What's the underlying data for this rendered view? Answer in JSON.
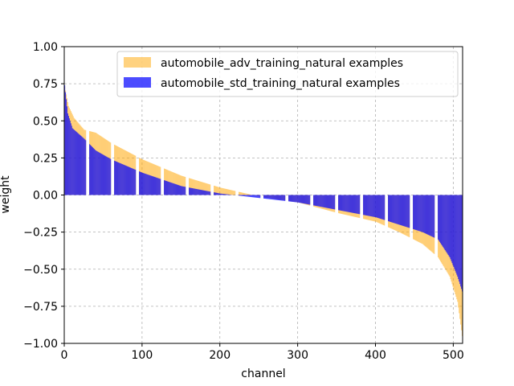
{
  "chart_data": {
    "type": "bar",
    "xlabel": "channel",
    "ylabel": "weight",
    "xlim": [
      0,
      512
    ],
    "ylim": [
      -1.0,
      1.0
    ],
    "xticks": [
      0,
      100,
      200,
      300,
      400,
      500
    ],
    "yticks": [
      -1.0,
      -0.75,
      -0.5,
      -0.25,
      0.0,
      0.25,
      0.5,
      0.75,
      1.0
    ],
    "ytick_labels": [
      "−1.00",
      "−0.75",
      "−0.50",
      "−0.25",
      "0.00",
      "0.25",
      "0.50",
      "0.75",
      "1.00"
    ],
    "grid": true,
    "legend_position": "top-right",
    "channel_count": 512,
    "gap_every": 32,
    "gap_width": 4,
    "series": [
      {
        "name": "automobile_adv_training_natural examples",
        "color": "#ffa500",
        "alpha": 0.5,
        "curve_knots": [
          [
            0,
            0.73
          ],
          [
            5,
            0.6
          ],
          [
            12,
            0.52
          ],
          [
            25,
            0.44
          ],
          [
            40,
            0.42
          ],
          [
            60,
            0.35
          ],
          [
            100,
            0.24
          ],
          [
            150,
            0.13
          ],
          [
            200,
            0.05
          ],
          [
            250,
            -0.01
          ],
          [
            300,
            -0.05
          ],
          [
            350,
            -0.12
          ],
          [
            400,
            -0.18
          ],
          [
            430,
            -0.25
          ],
          [
            460,
            -0.33
          ],
          [
            480,
            -0.42
          ],
          [
            495,
            -0.55
          ],
          [
            505,
            -0.72
          ],
          [
            511,
            -0.95
          ]
        ]
      },
      {
        "name": "automobile_std_training_natural examples",
        "color": "#0000ff",
        "alpha": 0.7,
        "curve_knots": [
          [
            0,
            0.74
          ],
          [
            4,
            0.55
          ],
          [
            10,
            0.45
          ],
          [
            25,
            0.38
          ],
          [
            40,
            0.3
          ],
          [
            60,
            0.24
          ],
          [
            100,
            0.15
          ],
          [
            150,
            0.06
          ],
          [
            200,
            0.01
          ],
          [
            250,
            -0.02
          ],
          [
            300,
            -0.05
          ],
          [
            350,
            -0.1
          ],
          [
            400,
            -0.15
          ],
          [
            430,
            -0.2
          ],
          [
            460,
            -0.25
          ],
          [
            480,
            -0.3
          ],
          [
            495,
            -0.42
          ],
          [
            505,
            -0.55
          ],
          [
            511,
            -0.65
          ]
        ]
      }
    ]
  }
}
